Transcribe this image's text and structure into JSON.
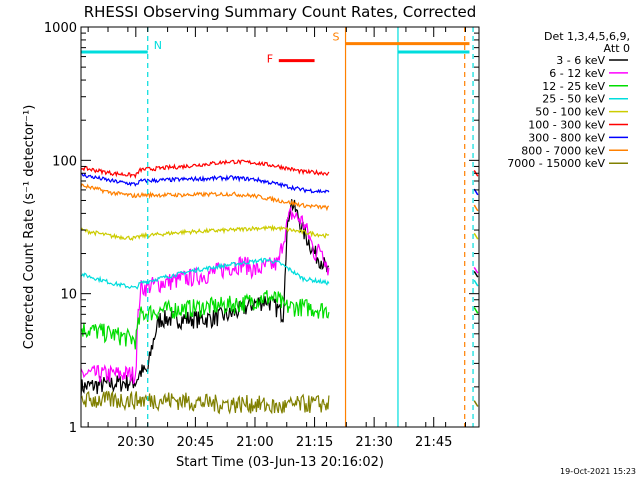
{
  "chart_data": {
    "type": "line",
    "title": "RHESSI Observing Summary Count Rates, Corrected",
    "xlabel": "Start Time (03-Jun-13 20:16:02)",
    "ylabel": "Corrected Count Rate (s⁻¹ detector⁻¹)",
    "ylim": [
      1,
      1000
    ],
    "yscale": "log",
    "x_unit": "minutes after 20:16:02 UT",
    "xlim": [
      20.27,
      21.94
    ],
    "x_ticks": [
      "20:30",
      "20:45",
      "21:00",
      "21:15",
      "21:30",
      "21:45"
    ],
    "x_tick_values": [
      20.5,
      20.75,
      21.0,
      21.25,
      21.5,
      21.75
    ],
    "y_ticks": [
      "1",
      "10",
      "100",
      "1000"
    ],
    "y_tick_values": [
      1,
      10,
      100,
      1000
    ],
    "grid": false,
    "legend_header": [
      "Det 1,3,4,5,6,9,",
      "Att 0"
    ],
    "legend_position": "right",
    "series": [
      {
        "name": "3 - 6 keV",
        "color": "#000000",
        "points": [
          [
            20.27,
            2.0
          ],
          [
            20.5,
            2.2
          ],
          [
            20.52,
            2.6
          ],
          [
            20.55,
            2.6
          ],
          [
            20.6,
            6.5
          ],
          [
            20.8,
            6.5
          ],
          [
            20.9,
            7
          ],
          [
            21.0,
            8.5
          ],
          [
            21.05,
            9
          ],
          [
            21.12,
            7
          ],
          [
            21.15,
            50
          ],
          [
            21.2,
            30
          ],
          [
            21.25,
            20
          ],
          [
            21.28,
            18
          ],
          [
            21.3,
            15
          ],
          [
            21.31,
            14
          ]
        ]
      },
      {
        "name": "6 - 12 keV",
        "color": "#ff00ff",
        "points": [
          [
            20.27,
            2.5
          ],
          [
            20.5,
            2.5
          ],
          [
            20.52,
            11
          ],
          [
            20.6,
            12
          ],
          [
            20.8,
            14
          ],
          [
            20.95,
            17
          ],
          [
            21.0,
            15
          ],
          [
            21.1,
            17
          ],
          [
            21.15,
            40
          ],
          [
            21.2,
            35
          ],
          [
            21.25,
            20
          ],
          [
            21.28,
            22
          ],
          [
            21.3,
            17
          ],
          [
            21.31,
            15
          ]
        ]
      },
      {
        "name": "12 - 25 keV",
        "color": "#00dd00",
        "points": [
          [
            20.27,
            5.5
          ],
          [
            20.4,
            5.0
          ],
          [
            20.5,
            4.5
          ],
          [
            20.52,
            7.0
          ],
          [
            20.6,
            7.5
          ],
          [
            20.8,
            8.0
          ],
          [
            20.95,
            8.5
          ],
          [
            21.0,
            9.0
          ],
          [
            21.05,
            9.5
          ],
          [
            21.1,
            9.0
          ],
          [
            21.12,
            8.0
          ],
          [
            21.2,
            8.0
          ],
          [
            21.31,
            7.5
          ]
        ]
      },
      {
        "name": "25 - 50 keV",
        "color": "#00dddd",
        "points": [
          [
            20.27,
            14
          ],
          [
            20.4,
            12
          ],
          [
            20.5,
            11
          ],
          [
            20.52,
            12
          ],
          [
            20.6,
            13
          ],
          [
            20.75,
            15
          ],
          [
            20.95,
            17
          ],
          [
            21.05,
            18
          ],
          [
            21.1,
            17
          ],
          [
            21.15,
            15
          ],
          [
            21.2,
            13
          ],
          [
            21.31,
            12
          ]
        ]
      },
      {
        "name": "50 - 100 keV",
        "color": "#cccc00",
        "points": [
          [
            20.27,
            30
          ],
          [
            20.4,
            27
          ],
          [
            20.5,
            26
          ],
          [
            20.52,
            27
          ],
          [
            20.7,
            29
          ],
          [
            20.9,
            30
          ],
          [
            21.0,
            31
          ],
          [
            21.1,
            31
          ],
          [
            21.2,
            29
          ],
          [
            21.31,
            27
          ]
        ]
      },
      {
        "name": "100 - 300 keV",
        "color": "#ff0000",
        "points": [
          [
            20.27,
            88
          ],
          [
            20.4,
            80
          ],
          [
            20.5,
            77
          ],
          [
            20.52,
            85
          ],
          [
            20.7,
            90
          ],
          [
            20.9,
            98
          ],
          [
            21.0,
            96
          ],
          [
            21.1,
            90
          ],
          [
            21.2,
            82
          ],
          [
            21.31,
            80
          ]
        ]
      },
      {
        "name": "300 - 800 keV",
        "color": "#0000ff",
        "points": [
          [
            20.27,
            78
          ],
          [
            20.4,
            70
          ],
          [
            20.5,
            66
          ],
          [
            20.52,
            70
          ],
          [
            20.7,
            72
          ],
          [
            20.9,
            74
          ],
          [
            21.0,
            72
          ],
          [
            21.1,
            66
          ],
          [
            21.2,
            60
          ],
          [
            21.31,
            58
          ]
        ]
      },
      {
        "name": "800 - 7000 keV",
        "color": "#ff8000",
        "points": [
          [
            20.27,
            65
          ],
          [
            20.4,
            57
          ],
          [
            20.5,
            54
          ],
          [
            20.52,
            55
          ],
          [
            20.7,
            55
          ],
          [
            20.9,
            56
          ],
          [
            21.0,
            54
          ],
          [
            21.1,
            50
          ],
          [
            21.2,
            46
          ],
          [
            21.31,
            44
          ]
        ]
      },
      {
        "name": "7000 - 15000 keV",
        "color": "#808000",
        "points": [
          [
            20.27,
            1.6
          ],
          [
            20.5,
            1.6
          ],
          [
            20.65,
            1.6
          ],
          [
            20.85,
            1.5
          ],
          [
            21.0,
            1.5
          ],
          [
            21.1,
            1.4
          ],
          [
            21.2,
            1.5
          ],
          [
            21.31,
            1.5
          ]
        ]
      }
    ],
    "annotations": [
      {
        "label": "N",
        "color": "#00dddd",
        "x_start": 20.27,
        "x_end": 20.55,
        "y": 650
      },
      {
        "label": "F",
        "color": "#ff0000",
        "x_start": 21.1,
        "x_end": 21.25,
        "y": 560
      },
      {
        "label": "S",
        "color": "#ff8000",
        "x_start": 21.38,
        "x_end": 21.9,
        "y": 750
      },
      {
        "label": "",
        "color": "#00dddd",
        "x_start": 21.6,
        "x_end": 21.9,
        "y": 650
      }
    ],
    "vertical_markers": [
      {
        "x": 20.55,
        "color": "#00dddd",
        "style": "dashed"
      },
      {
        "x": 21.38,
        "color": "#ff8000",
        "style": "solid"
      },
      {
        "x": 21.6,
        "color": "#00dddd",
        "style": "solid"
      },
      {
        "x": 21.88,
        "color": "#ff8000",
        "style": "dashed"
      },
      {
        "x": 21.915,
        "color": "#00dddd",
        "style": "dashed"
      }
    ],
    "footer": "19-Oct-2021 15:23"
  }
}
